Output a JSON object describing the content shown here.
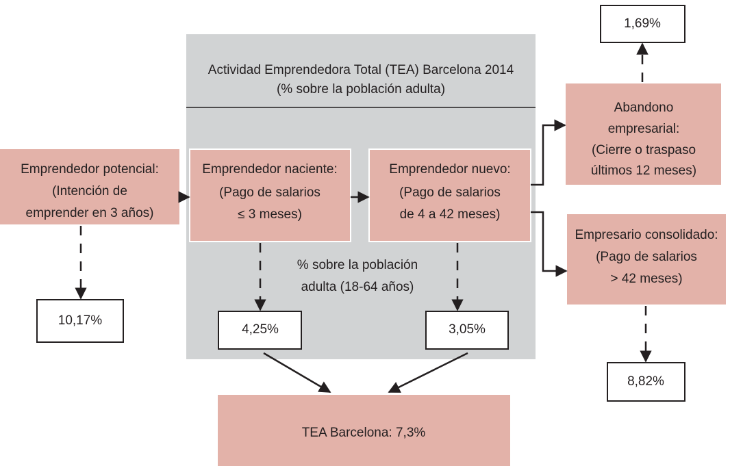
{
  "panel": {
    "title": [
      "Actividad Emprendedora Total (TEA) Barcelona 2014",
      "(% sobre la población adulta)"
    ],
    "note": [
      "% sobre la población",
      "adulta (18-64 años)"
    ]
  },
  "nodes": {
    "potencial": {
      "lines": [
        "Emprendedor potencial:",
        "(Intención de",
        "emprender en 3 años)"
      ],
      "value": "10,17%"
    },
    "naciente": {
      "lines": [
        "Emprendedor naciente:",
        "(Pago de salarios",
        "≤ 3 meses)"
      ],
      "value": "4,25%"
    },
    "nuevo": {
      "lines": [
        "Emprendedor nuevo:",
        "(Pago de salarios",
        "de 4 a 42 meses)"
      ],
      "value": "3,05%"
    },
    "abandono": {
      "lines": [
        "Abandono",
        "empresarial:",
        "(Cierre o traspaso",
        "últimos 12 meses)"
      ],
      "value": "1,69%"
    },
    "consolidado": {
      "lines": [
        "Empresario consolidado:",
        "(Pago de salarios",
        "> 42 meses)"
      ],
      "value": "8,82%"
    },
    "tea": {
      "lines": [
        "TEA Barcelona: 7,3%"
      ]
    }
  }
}
